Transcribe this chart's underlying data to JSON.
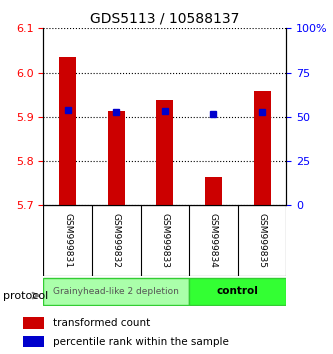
{
  "title": "GDS5113 / 10588137",
  "samples": [
    "GSM999831",
    "GSM999832",
    "GSM999833",
    "GSM999834",
    "GSM999835"
  ],
  "transformed_counts": [
    6.035,
    5.913,
    5.937,
    5.763,
    5.958
  ],
  "percentile_ranks": [
    54.0,
    52.5,
    53.5,
    51.5,
    53.0
  ],
  "ylim_left": [
    5.7,
    6.1
  ],
  "ylim_right": [
    0,
    100
  ],
  "yticks_left": [
    5.7,
    5.8,
    5.9,
    6.0,
    6.1
  ],
  "yticks_right": [
    0,
    25,
    50,
    75,
    100
  ],
  "bar_color": "#cc0000",
  "marker_color": "#0000cc",
  "bar_width": 0.35,
  "grid_color": "#000000",
  "groups": [
    {
      "label": "Grainyhead-like 2 depletion",
      "samples": [
        0,
        1,
        2
      ],
      "color": "#aaffaa",
      "border_color": "#33cc33"
    },
    {
      "label": "control",
      "samples": [
        3,
        4
      ],
      "color": "#33ff33",
      "border_color": "#33cc33"
    }
  ],
  "legend_items": [
    {
      "color": "#cc0000",
      "label": "transformed count"
    },
    {
      "color": "#0000cc",
      "label": "percentile rank within the sample"
    }
  ],
  "protocol_label": "protocol",
  "background_color": "#ffffff",
  "plot_bg_color": "#ffffff"
}
